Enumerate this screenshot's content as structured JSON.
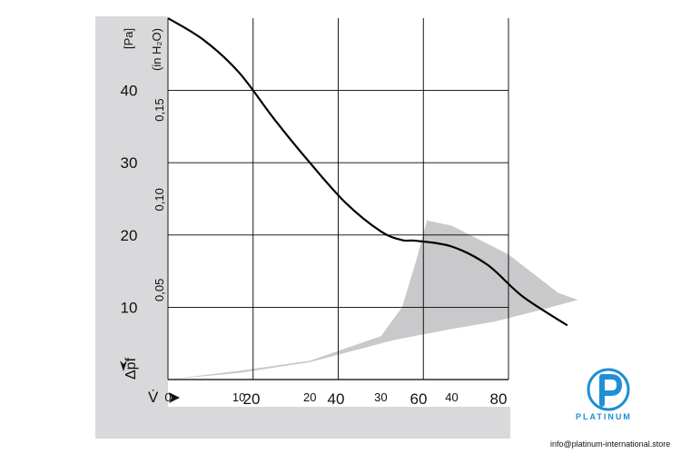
{
  "chart_data": {
    "type": "line",
    "series": [
      {
        "x": [
          0,
          5,
          10,
          15,
          20,
          25,
          30,
          33,
          35,
          40,
          45,
          50,
          56.3
        ],
        "y": [
          50,
          47,
          42.5,
          36,
          30,
          24.5,
          20.5,
          19.3,
          19.2,
          18.4,
          15.9,
          11.5,
          7.5
        ]
      }
    ],
    "operating_band": {
      "color": "#c9c9cb",
      "outline": [
        [
          0,
          0
        ],
        [
          10,
          1.2
        ],
        [
          20,
          2.6
        ],
        [
          30,
          6
        ],
        [
          33,
          10
        ],
        [
          35,
          16.5
        ],
        [
          36.5,
          22
        ],
        [
          40,
          21.3
        ],
        [
          48,
          17.3
        ],
        [
          55,
          12
        ],
        [
          57.8,
          11
        ],
        [
          52,
          9.5
        ],
        [
          46,
          8
        ],
        [
          40,
          7
        ],
        [
          32,
          5.5
        ],
        [
          20,
          2.4
        ],
        [
          10,
          0.9
        ],
        [
          0,
          0
        ]
      ]
    },
    "xlim": [
      0,
      48
    ],
    "ylim": [
      0,
      50
    ],
    "x_ticks_top": [
      "0",
      "10",
      "20",
      "30",
      "40"
    ],
    "x_ticks_bottom": [
      "20",
      "40",
      "60",
      "80"
    ],
    "y_ticks_left": [
      "10",
      "20",
      "30",
      "40"
    ],
    "y_ticks_inner": [
      "0,05",
      "0,10",
      "0,15"
    ],
    "ylabel_unit": "[Pa]",
    "ylabel_unit_secondary": "(in H₂O)",
    "ylabel": "Δpf",
    "xlabel": "V̇",
    "grid": true,
    "line_color": "#000000",
    "panel_color": "#d9d9db"
  },
  "brand": {
    "word": "PLATINUM",
    "email": "info@platinum-international.store",
    "color": "#1f8fd6"
  }
}
